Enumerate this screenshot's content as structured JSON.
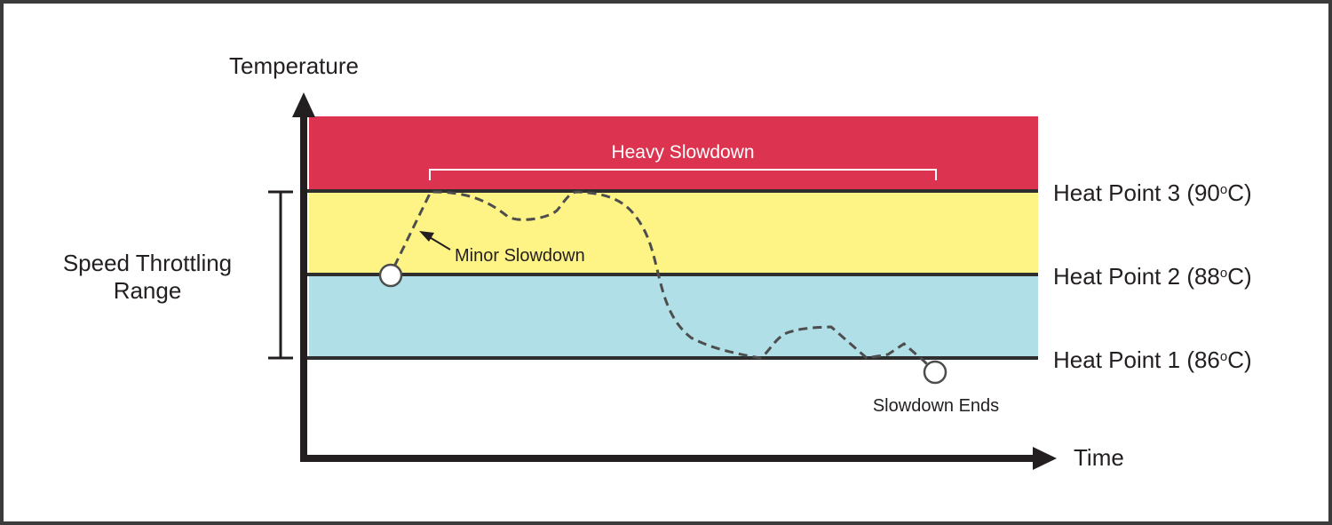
{
  "axes": {
    "y_label": "Temperature",
    "x_label": "Time"
  },
  "range_label": {
    "line1": "Speed Throttling",
    "line2": "Range"
  },
  "heat_points": [
    {
      "name": "Heat Point 3",
      "open": " (90",
      "deg": "o",
      "unit": "C)",
      "value_c": 90
    },
    {
      "name": "Heat Point 2",
      "open": " (88",
      "deg": "o",
      "unit": "C)",
      "value_c": 88
    },
    {
      "name": "Heat Point 1",
      "open": " (86",
      "deg": "o",
      "unit": "C)",
      "value_c": 86
    }
  ],
  "annotations": {
    "heavy": "Heavy Slowdown",
    "minor": "Minor Slowdown",
    "ends": "Slowdown Ends"
  },
  "colors": {
    "red_zone": "#dc3450",
    "yellow_zone": "#fef486",
    "blue_zone": "#b0dfe8",
    "axis": "#231f20",
    "threshold_line": "#2e2e2e",
    "temperature_curve": "#4d4d4d",
    "frame": "#3b3b3b",
    "heavy_bracket": "#ffffff"
  }
}
